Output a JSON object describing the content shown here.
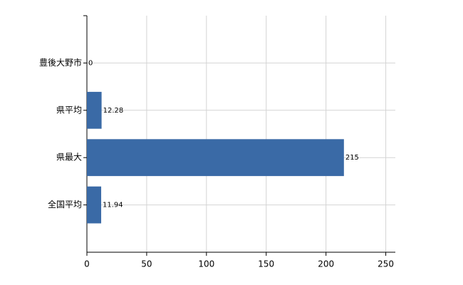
{
  "chart_data": {
    "type": "barh",
    "categories": [
      "豊後大野市",
      "県平均",
      "県最大",
      "全国平均"
    ],
    "values": [
      0,
      12.28,
      215,
      11.94
    ],
    "color": "#3a6aa6",
    "xlim": [
      0,
      258
    ],
    "xticks": [
      0,
      50,
      100,
      150,
      200,
      250
    ],
    "grid": true
  }
}
